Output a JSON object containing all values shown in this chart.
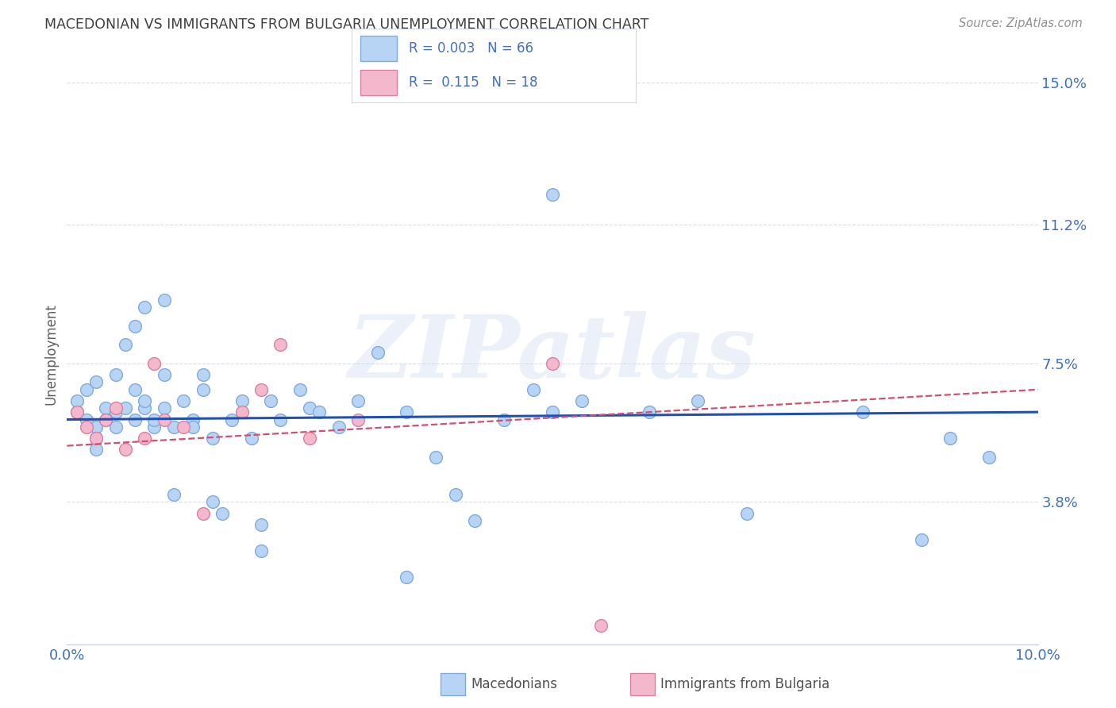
{
  "title": "MACEDONIAN VS IMMIGRANTS FROM BULGARIA UNEMPLOYMENT CORRELATION CHART",
  "source": "Source: ZipAtlas.com",
  "ylabel": "Unemployment",
  "xlim": [
    0.0,
    0.1
  ],
  "ylim": [
    0.0,
    0.155
  ],
  "yticks": [
    0.038,
    0.075,
    0.112,
    0.15
  ],
  "ytick_labels": [
    "3.8%",
    "7.5%",
    "11.2%",
    "15.0%"
  ],
  "xticks": [
    0.0,
    0.02,
    0.04,
    0.06,
    0.08,
    0.1
  ],
  "xtick_labels": [
    "0.0%",
    "",
    "",
    "",
    "",
    "10.0%"
  ],
  "blue_color": "#b8d4f4",
  "blue_edge_color": "#80aae0",
  "pink_color": "#f4b8cc",
  "pink_edge_color": "#d880a0",
  "blue_line_color": "#2050b0",
  "pink_line_color": "#d05070",
  "title_color": "#404040",
  "axis_label_color": "#4070c0",
  "grid_color": "#d8dce8",
  "legend_box_color": "#d0d8e8",
  "watermark": "ZIPatlas",
  "macedonians_x": [
    0.001,
    0.001,
    0.002,
    0.002,
    0.003,
    0.003,
    0.003,
    0.003,
    0.004,
    0.004,
    0.005,
    0.005,
    0.005,
    0.006,
    0.006,
    0.007,
    0.007,
    0.007,
    0.008,
    0.008,
    0.008,
    0.009,
    0.009,
    0.01,
    0.01,
    0.01,
    0.011,
    0.011,
    0.012,
    0.013,
    0.013,
    0.014,
    0.014,
    0.015,
    0.015,
    0.016,
    0.017,
    0.018,
    0.019,
    0.02,
    0.021,
    0.022,
    0.024,
    0.025,
    0.026,
    0.028,
    0.03,
    0.032,
    0.035,
    0.04,
    0.042,
    0.045,
    0.048,
    0.05,
    0.053,
    0.06,
    0.065,
    0.07,
    0.082,
    0.088,
    0.091,
    0.05,
    0.038,
    0.095,
    0.035,
    0.02
  ],
  "macedonians_y": [
    0.062,
    0.065,
    0.06,
    0.068,
    0.058,
    0.055,
    0.052,
    0.07,
    0.063,
    0.06,
    0.062,
    0.072,
    0.058,
    0.063,
    0.08,
    0.068,
    0.085,
    0.06,
    0.063,
    0.065,
    0.09,
    0.058,
    0.06,
    0.092,
    0.063,
    0.072,
    0.04,
    0.058,
    0.065,
    0.06,
    0.058,
    0.068,
    0.072,
    0.038,
    0.055,
    0.035,
    0.06,
    0.065,
    0.055,
    0.025,
    0.065,
    0.06,
    0.068,
    0.063,
    0.062,
    0.058,
    0.065,
    0.078,
    0.062,
    0.04,
    0.033,
    0.06,
    0.068,
    0.062,
    0.065,
    0.062,
    0.065,
    0.035,
    0.062,
    0.028,
    0.055,
    0.12,
    0.05,
    0.05,
    0.018,
    0.032
  ],
  "immigrants_x": [
    0.001,
    0.002,
    0.003,
    0.004,
    0.005,
    0.006,
    0.008,
    0.009,
    0.01,
    0.012,
    0.014,
    0.018,
    0.02,
    0.022,
    0.025,
    0.03,
    0.05,
    0.055
  ],
  "immigrants_y": [
    0.062,
    0.058,
    0.055,
    0.06,
    0.063,
    0.052,
    0.055,
    0.075,
    0.06,
    0.058,
    0.035,
    0.062,
    0.068,
    0.08,
    0.055,
    0.06,
    0.075,
    0.005
  ],
  "blue_trend_y0": 0.06,
  "blue_trend_y1": 0.062,
  "pink_trend_y0": 0.053,
  "pink_trend_y1": 0.068
}
